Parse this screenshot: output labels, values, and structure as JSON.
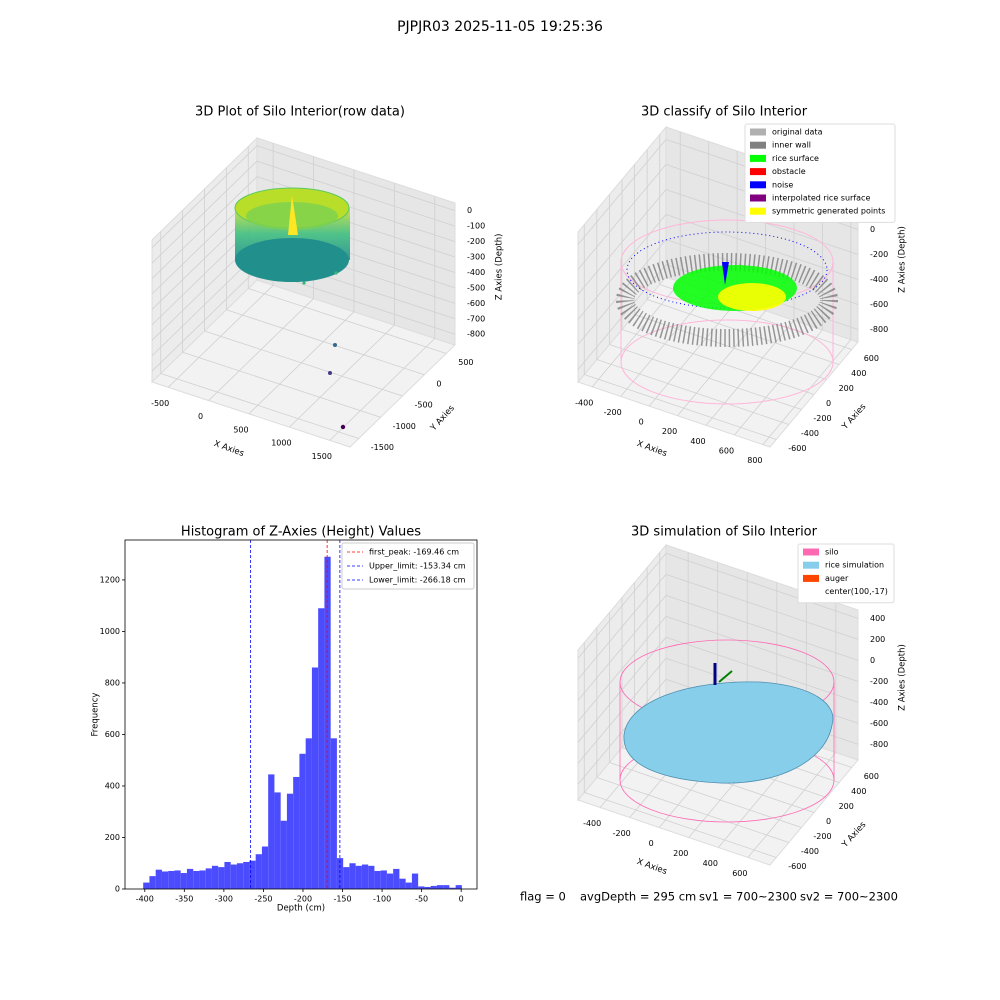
{
  "title": "PJPJR03 2025-11-05 19:25:36",
  "footer": [
    "flag = 0",
    "avgDepth = 295 cm",
    "sv1 = 700~2300",
    "sv2 = 700~2300"
  ],
  "chart_data": [
    {
      "type": "scatter3d",
      "title": "3D Plot of Silo Interior(row data)",
      "xlabel": "X Axies",
      "ylabel": "Y Axies",
      "zlabel": "Z Axies (Depth)",
      "xlim": [
        -700,
        1750
      ],
      "xticks": [
        -500,
        0,
        500,
        1000,
        1500
      ],
      "ylim": [
        -1700,
        700
      ],
      "yticks": [
        -1500,
        -1000,
        -500,
        0,
        500
      ],
      "zlim": [
        -870,
        50
      ],
      "zticks": [
        -800,
        -700,
        -600,
        -500,
        -400,
        -300,
        -200,
        -100,
        0
      ]
    },
    {
      "type": "scatter3d",
      "title": "3D classify of Silo Interior",
      "xlabel": "X Axies",
      "ylabel": "Y Axies",
      "zlabel": "Z Axies (Depth)",
      "xlim": [
        -500,
        850
      ],
      "xticks": [
        -400,
        -200,
        0,
        200,
        400,
        600,
        800
      ],
      "ylim": [
        -700,
        700
      ],
      "yticks": [
        -600,
        -400,
        -200,
        0,
        200,
        400,
        600
      ],
      "zlim": [
        -900,
        300
      ],
      "zticks": [
        -800,
        -600,
        -400,
        -200,
        0,
        200
      ],
      "series": [
        {
          "name": "original data",
          "color": "#b0b0b0"
        },
        {
          "name": "inner wall",
          "color": "#808080"
        },
        {
          "name": "rice surface",
          "color": "#00ff00"
        },
        {
          "name": "obstacle",
          "color": "#ff0000"
        },
        {
          "name": "noise",
          "color": "#0000ff"
        },
        {
          "name": "interpolated rice surface",
          "color": "#800080"
        },
        {
          "name": "symmetric generated points",
          "color": "#ffff00"
        }
      ]
    },
    {
      "type": "histogram",
      "title": "Histogram of Z-Axies (Height) Values",
      "xlabel": "Depth (cm)",
      "ylabel": "Frequency",
      "color": "#4c4cff",
      "bins": [
        -402,
        -394.1,
        -386.2,
        -378.3,
        -370.4,
        -362.5,
        -354.6,
        -346.7,
        -338.8,
        -330.9,
        -323,
        -315.1,
        -307.2,
        -299.3,
        -291.4,
        -283.5,
        -275.6,
        -267.7,
        -259.8,
        -251.9,
        -244,
        -236.1,
        -228.2,
        -220.3,
        -212.4,
        -204.5,
        -196.6,
        -188.7,
        -180.8,
        -172.9,
        -165,
        -157.1,
        -149.2,
        -141.3,
        -133.4,
        -125.5,
        -117.6,
        -109.7,
        -101.8,
        -93.9,
        -86,
        -78.1,
        -70.2,
        -62.3,
        -54.4,
        -46.5,
        -38.6,
        -30.7,
        -22.8,
        -14.9,
        -7,
        0.9
      ],
      "values": [
        25,
        50,
        75,
        68,
        70,
        72,
        62,
        78,
        70,
        72,
        80,
        90,
        85,
        105,
        95,
        100,
        105,
        110,
        135,
        165,
        445,
        375,
        265,
        370,
        435,
        525,
        585,
        860,
        1090,
        1290,
        585,
        120,
        85,
        100,
        90,
        95,
        90,
        70,
        72,
        60,
        78,
        40,
        25,
        60,
        10,
        8,
        12,
        15,
        15,
        5,
        15
      ],
      "xlim": [
        -425,
        20
      ],
      "xticks": [
        -400,
        -350,
        -300,
        -250,
        -200,
        -150,
        -100,
        -50,
        0
      ],
      "ylim": [
        0,
        1355
      ],
      "yticks": [
        0,
        200,
        400,
        600,
        800,
        1000,
        1200
      ],
      "lines": [
        {
          "name": "first_peak: -169.46 cm",
          "value": -169.46,
          "color": "#ff0000"
        },
        {
          "name": "Upper_limit: -153.34 cm",
          "value": -153.34,
          "color": "#0000ff"
        },
        {
          "name": "Lower_limit: -266.18 cm",
          "value": -266.18,
          "color": "#0000ff"
        }
      ],
      "legend": "upper right"
    },
    {
      "type": "surface3d",
      "title": "3D simulation of Silo Interior",
      "xlabel": "X Axies",
      "ylabel": "Y Axies",
      "zlabel": "Z Axies (Depth)",
      "xlim": [
        -550,
        750
      ],
      "xticks": [
        -400,
        -200,
        0,
        200,
        400,
        600
      ],
      "ylim": [
        -700,
        700
      ],
      "yticks": [
        -600,
        -400,
        -200,
        0,
        200,
        400,
        600
      ],
      "zlim": [
        -950,
        480
      ],
      "zticks": [
        -800,
        -600,
        -400,
        -200,
        0,
        200,
        400
      ],
      "series": [
        {
          "name": "silo",
          "color": "#ff69b4"
        },
        {
          "name": "rice simulation",
          "color": "#87ceeb"
        },
        {
          "name": "auger",
          "color": "#ff4500"
        },
        {
          "name": "center(100,-17)",
          "color": "#ffffff"
        }
      ]
    }
  ]
}
